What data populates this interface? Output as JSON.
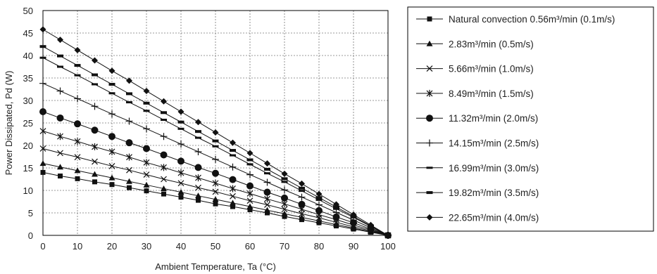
{
  "chart_data": {
    "type": "line",
    "title": "",
    "xlabel": "Ambient Temperature, Ta (°C)",
    "ylabel": "Power Dissipated, Pd (W)",
    "xlim": [
      0,
      100
    ],
    "ylim": [
      0,
      50
    ],
    "x_ticks": [
      0,
      10,
      20,
      30,
      40,
      50,
      60,
      70,
      80,
      90,
      100
    ],
    "y_ticks": [
      0,
      5,
      10,
      15,
      20,
      25,
      30,
      35,
      40,
      45,
      50
    ],
    "grid": true,
    "legend_position": "right",
    "x": [
      0,
      5,
      10,
      15,
      20,
      25,
      30,
      35,
      40,
      45,
      50,
      55,
      60,
      65,
      70,
      75,
      80,
      85,
      90,
      95,
      100
    ],
    "series": [
      {
        "name": "Natural convection 0.56m³/min (0.1m/s)",
        "marker": "square",
        "values": [
          14.0,
          13.2,
          12.6,
          11.9,
          11.3,
          10.6,
          9.9,
          9.2,
          8.5,
          7.8,
          7.0,
          6.4,
          5.7,
          5.0,
          4.2,
          3.5,
          2.8,
          2.1,
          1.4,
          0.7,
          0
        ]
      },
      {
        "name": "2.83m³/min (0.5m/s)",
        "marker": "triangle",
        "values": [
          16.0,
          15.2,
          14.4,
          13.6,
          12.8,
          12.0,
          11.2,
          10.4,
          9.6,
          8.8,
          8.0,
          7.2,
          6.4,
          5.6,
          4.8,
          4.0,
          3.2,
          2.4,
          1.6,
          0.8,
          0
        ]
      },
      {
        "name": "5.66m³/min (1.0m/s)",
        "marker": "x",
        "values": [
          19.3,
          18.3,
          17.4,
          16.4,
          15.4,
          14.5,
          13.5,
          12.5,
          11.6,
          10.6,
          9.7,
          8.7,
          7.7,
          6.8,
          5.8,
          4.8,
          3.9,
          2.9,
          1.9,
          1.0,
          0
        ]
      },
      {
        "name": "8.49m³/min (1.5m/s)",
        "marker": "asterisk",
        "values": [
          23.2,
          22.0,
          20.9,
          19.7,
          18.6,
          17.4,
          16.2,
          15.1,
          13.9,
          12.8,
          11.6,
          10.4,
          9.3,
          8.1,
          7.0,
          5.8,
          4.6,
          3.5,
          2.3,
          1.2,
          0
        ]
      },
      {
        "name": "11.32m³/min (2.0m/s)",
        "marker": "circle",
        "values": [
          27.5,
          26.1,
          24.8,
          23.4,
          22.0,
          20.6,
          19.3,
          17.9,
          16.5,
          15.1,
          13.8,
          12.4,
          11.0,
          9.6,
          8.3,
          6.9,
          5.5,
          4.1,
          2.8,
          1.4,
          0
        ]
      },
      {
        "name": "14.15m³/min (2.5m/s)",
        "marker": "plus",
        "values": [
          33.8,
          32.1,
          30.4,
          28.7,
          27.0,
          25.4,
          23.7,
          22.0,
          20.3,
          18.6,
          16.9,
          15.2,
          13.5,
          11.8,
          10.1,
          8.5,
          6.8,
          5.1,
          3.4,
          1.7,
          0
        ]
      },
      {
        "name": "16.99m³/min (3.0m/s)",
        "marker": "dash",
        "values": [
          39.5,
          37.5,
          35.6,
          33.6,
          31.6,
          29.6,
          27.7,
          25.7,
          23.7,
          21.7,
          19.8,
          17.8,
          15.8,
          13.8,
          11.9,
          9.9,
          7.9,
          5.9,
          4.0,
          2.0,
          0
        ]
      },
      {
        "name": "19.82m³/min (3.5m/s)",
        "marker": "bar",
        "values": [
          42.0,
          39.9,
          37.8,
          35.7,
          33.6,
          31.5,
          29.4,
          27.3,
          25.2,
          23.1,
          21.0,
          18.9,
          16.8,
          14.7,
          12.6,
          10.5,
          8.4,
          6.3,
          4.2,
          2.1,
          0
        ]
      },
      {
        "name": "22.65m³/min (4.0m/s)",
        "marker": "diamond",
        "values": [
          45.8,
          43.5,
          41.2,
          38.9,
          36.6,
          34.4,
          32.1,
          29.8,
          27.5,
          25.2,
          22.9,
          20.6,
          18.3,
          16.0,
          13.7,
          11.5,
          9.2,
          6.9,
          4.6,
          2.3,
          0
        ]
      }
    ]
  }
}
